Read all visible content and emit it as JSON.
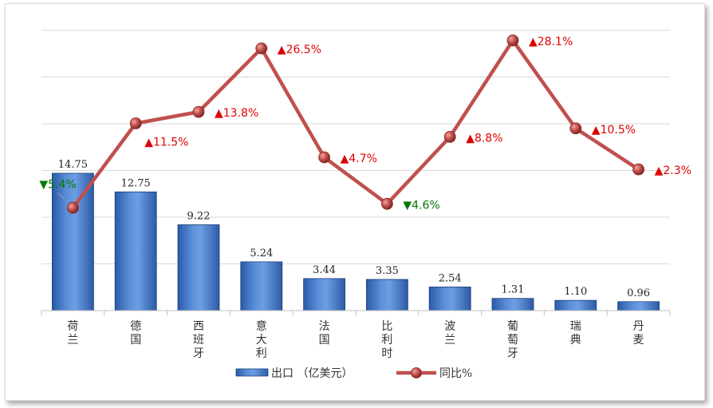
{
  "chart_data": {
    "type": "bar+line",
    "categories": [
      "荷兰",
      "德国",
      "西班牙",
      "意大利",
      "法国",
      "比利时",
      "波兰",
      "葡萄牙",
      "瑞典",
      "丹麦"
    ],
    "series": [
      {
        "name": "出口 （亿美元）",
        "type": "bar",
        "values": [
          14.75,
          12.75,
          9.22,
          5.24,
          3.44,
          3.35,
          2.54,
          1.31,
          1.1,
          0.96
        ],
        "labels": [
          "14.75",
          "12.75",
          "9.22",
          "5.24",
          "3.44",
          "3.35",
          "2.54",
          "1.31",
          "1.10",
          "0.96"
        ],
        "color": "#4472C4"
      },
      {
        "name": "同比%",
        "type": "line",
        "values": [
          -5.4,
          11.5,
          13.8,
          26.5,
          4.7,
          -4.6,
          8.8,
          28.1,
          10.5,
          2.3
        ],
        "labels": [
          "5.4%",
          "11.5%",
          "13.8%",
          "26.5%",
          "4.7%",
          "4.6%",
          "8.8%",
          "28.1%",
          "10.5%",
          "2.3%"
        ],
        "color": "#C0504D"
      }
    ],
    "up_marker": "▲",
    "down_marker": "▼",
    "up_color": "#E00000",
    "down_color": "#007A00",
    "grid": true,
    "legend": "bottom"
  }
}
